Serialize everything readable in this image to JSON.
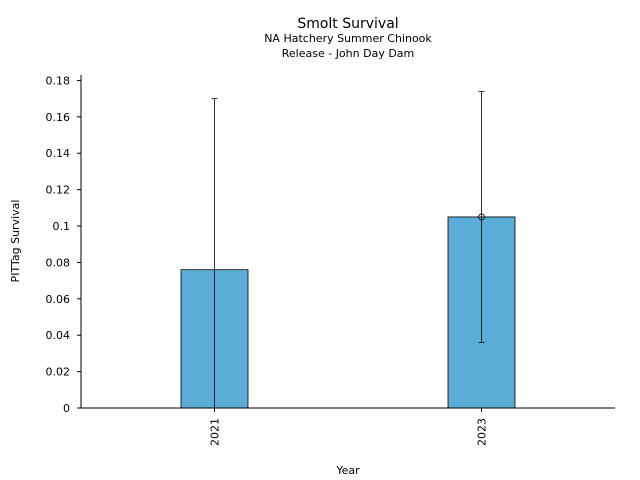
{
  "chart_data": {
    "type": "bar",
    "title": "Smolt Survival",
    "subtitle_lines": [
      "NA Hatchery Summer Chinook",
      "Release - John Day Dam"
    ],
    "xlabel": "Year",
    "ylabel": "PITTag Survival",
    "categories": [
      "2021",
      "2023"
    ],
    "values": [
      0.076,
      0.105
    ],
    "error_low": [
      0.0,
      0.036
    ],
    "error_high": [
      0.17,
      0.174
    ],
    "point_marker": [
      false,
      true
    ],
    "ylim": [
      0,
      0.183
    ],
    "yticks": [
      0,
      0.02,
      0.04,
      0.06,
      0.08,
      0.1,
      0.12,
      0.14,
      0.16,
      0.18
    ],
    "ytick_labels": [
      "0",
      "0.02",
      "0.04",
      "0.06",
      "0.08",
      "0.1",
      "0.12",
      "0.14",
      "0.16",
      "0.18"
    ],
    "grid": false,
    "bar_color": "#5bacd6",
    "edge_color": "#000000"
  }
}
